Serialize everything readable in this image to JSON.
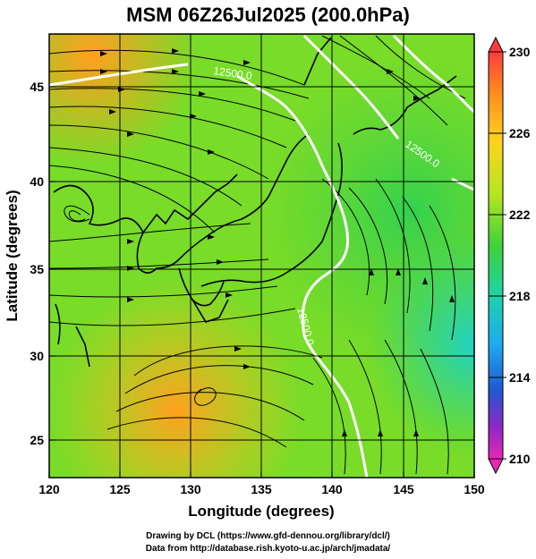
{
  "title": "MSM 06Z26Jul2025 (200.0hPa)",
  "axes": {
    "xlabel": "Longitude (degrees)",
    "ylabel": "Latitude  (degrees)",
    "x_ticks": [
      "120",
      "125",
      "130",
      "135",
      "140",
      "145",
      "150"
    ],
    "y_ticks": [
      "25",
      "30",
      "35",
      "40",
      "45"
    ]
  },
  "colorbar": {
    "labels": [
      "230",
      "226",
      "222",
      "218",
      "214",
      "210"
    ],
    "colors": [
      "#ff3c3c",
      "#ff8c1e",
      "#ffd21e",
      "#b4e61e",
      "#3cd23c",
      "#1ed2aa",
      "#1eaaf0",
      "#1e5ad2",
      "#8c28c8",
      "#e628b4"
    ]
  },
  "contour_labels": [
    "12500.0",
    "12500.0",
    "12500.0"
  ],
  "credits": {
    "line1": "Drawing by DCL (https://www.gfd-dennou.org/library/dcl/)",
    "line2": "Data from http://database.rish.kyoto-u.ac.jp/arch/jmadata/"
  },
  "chart_data": {
    "type": "map",
    "title": "MSM 06Z26Jul2025 (200.0hPa)",
    "xlabel": "Longitude (degrees)",
    "ylabel": "Latitude  (degrees)",
    "xlim": [
      120,
      150
    ],
    "ylim": [
      22.5,
      47.6
    ],
    "colorbar_range": [
      210,
      230
    ],
    "colorbar_ticks": [
      230,
      226,
      222,
      218,
      214,
      210
    ],
    "contours": [
      {
        "level": 12500.0,
        "color": "white"
      }
    ],
    "grid": true,
    "field_samples": [
      {
        "lon": 122,
        "lat": 46,
        "value": 226
      },
      {
        "lon": 122,
        "lat": 27,
        "value": 226
      },
      {
        "lon": 128,
        "lat": 26,
        "value": 226
      },
      {
        "lon": 135,
        "lat": 40,
        "value": 223
      },
      {
        "lon": 145,
        "lat": 35,
        "value": 221
      },
      {
        "lon": 149,
        "lat": 31,
        "value": 219
      }
    ]
  }
}
